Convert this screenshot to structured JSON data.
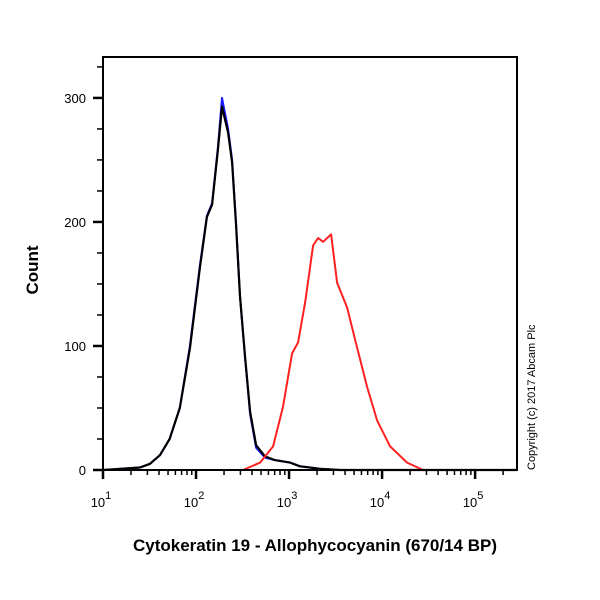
{
  "chart_data": {
    "type": "line",
    "title": "",
    "xlabel": "Cytokeratin 19 - Allophycocyanin (670/14 BP)",
    "ylabel": "Count",
    "xscale": "log",
    "xlim": [
      10,
      282000
    ],
    "ylim": [
      0,
      333
    ],
    "grid": false,
    "x_ticks": [
      {
        "value": 10,
        "base": "10",
        "exp": "1"
      },
      {
        "value": 100,
        "base": "10",
        "exp": "2"
      },
      {
        "value": 1000,
        "base": "10",
        "exp": "3"
      },
      {
        "value": 10000,
        "base": "10",
        "exp": "4"
      },
      {
        "value": 100000,
        "base": "10",
        "exp": "5"
      }
    ],
    "y_ticks": [
      0,
      100,
      200,
      300
    ],
    "annotation": "Copyright (c) 2017 Abcam Plc",
    "series": [
      {
        "color": "#1a1aff",
        "x": [
          10,
          25,
          32,
          41,
          52,
          67,
          86,
          110,
          131,
          149,
          172,
          190,
          221,
          244,
          269,
          297,
          337,
          381,
          442,
          552,
          707,
          1025,
          1312,
          2150,
          3530,
          282000
        ],
        "y": [
          0,
          2,
          5,
          12,
          25,
          50,
          100,
          165,
          205,
          215,
          260,
          300,
          275,
          250,
          200,
          140,
          90,
          45,
          18,
          10,
          8,
          6,
          3,
          1,
          0,
          0
        ]
      },
      {
        "color": "#000000",
        "x": [
          10,
          25,
          32,
          41,
          52,
          67,
          86,
          110,
          131,
          149,
          172,
          190,
          221,
          244,
          269,
          297,
          337,
          381,
          442,
          552,
          707,
          1025,
          1312,
          2150,
          3530,
          282000
        ],
        "y": [
          0,
          2,
          5,
          12,
          25,
          50,
          98,
          163,
          204,
          214,
          258,
          293,
          272,
          248,
          198,
          140,
          91,
          47,
          20,
          11,
          8,
          6,
          3,
          1,
          0,
          0
        ]
      },
      {
        "color": "#ff2020",
        "x": [
          10,
          320,
          488,
          673,
          861,
          1077,
          1250,
          1486,
          1811,
          2051,
          2323,
          2831,
          3282,
          4205,
          5130,
          6906,
          8830,
          12190,
          18570,
          27600,
          282000
        ],
        "y": [
          0,
          0,
          6,
          19,
          51,
          94,
          103,
          135,
          181,
          187,
          184,
          190,
          151,
          131,
          105,
          67,
          40,
          19,
          6,
          0,
          0
        ]
      }
    ]
  }
}
